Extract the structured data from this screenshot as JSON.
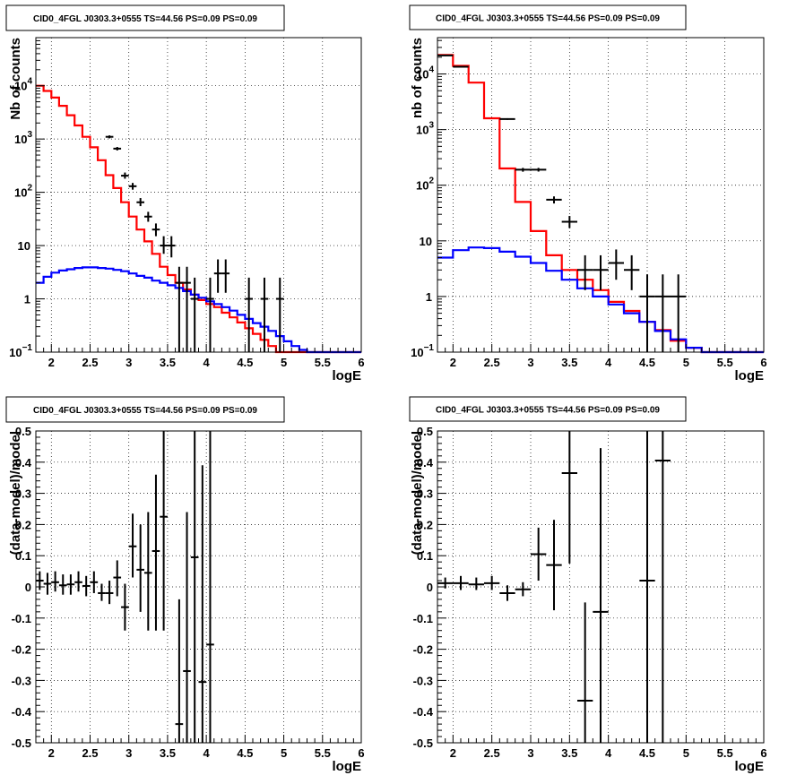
{
  "chart_data": [
    {
      "type": "histogram",
      "title": "CID0_4FGL J0303.3+0555 TS=44.56 PS=0.09 PS=0.09",
      "xlabel": "logE",
      "ylabel": "Nb of counts",
      "log_y": true,
      "xlim": [
        1.8,
        6.0
      ],
      "ylim": [
        0.1,
        80000
      ],
      "grid": true,
      "xticks": [
        "2",
        "2.5",
        "3",
        "3.5",
        "4",
        "4.5",
        "5",
        "5.5",
        "6"
      ],
      "yticks": [
        {
          "v": 0.1,
          "label": "10",
          "sup": "−1"
        },
        {
          "v": 1,
          "label": "1",
          "sup": ""
        },
        {
          "v": 10,
          "label": "10",
          "sup": ""
        },
        {
          "v": 100,
          "label": "10",
          "sup": "2"
        },
        {
          "v": 1000,
          "label": "10",
          "sup": "3"
        },
        {
          "v": 10000,
          "label": "10",
          "sup": "4"
        }
      ],
      "bin_edges_start": 1.8,
      "bin_width": 0.1,
      "series": [
        {
          "color": "#ff0000",
          "values": [
            10000,
            8000,
            6000,
            4200,
            2800,
            1800,
            1100,
            700,
            400,
            210,
            120,
            65,
            35,
            20,
            12,
            7,
            4,
            2.8,
            2.0,
            1.5,
            1.2,
            0.95,
            0.8,
            0.7,
            0.55,
            0.45,
            0.36,
            0.28,
            0.22,
            0.17,
            0.13,
            0.1,
            0.1,
            0.1,
            0.1,
            0.1,
            0.1,
            0.1,
            0.1,
            0.1,
            0.1,
            0.1
          ]
        },
        {
          "color": "#0000ff",
          "values": [
            2.0,
            2.6,
            3.1,
            3.4,
            3.6,
            3.8,
            3.9,
            3.9,
            3.8,
            3.7,
            3.5,
            3.3,
            3.0,
            2.7,
            2.5,
            2.2,
            2.0,
            1.8,
            1.6,
            1.4,
            1.2,
            1.05,
            0.9,
            0.8,
            0.7,
            0.6,
            0.5,
            0.42,
            0.35,
            0.3,
            0.25,
            0.2,
            0.16,
            0.13,
            0.11,
            0.1,
            0.1,
            0.1,
            0.1,
            0.1,
            0.1,
            0.1
          ]
        }
      ],
      "data_points": [
        {
          "x": 2.75,
          "y": 1100,
          "ex": 0.05,
          "lo": 1030,
          "hi": 1170
        },
        {
          "x": 2.85,
          "y": 660,
          "ex": 0.05,
          "lo": 610,
          "hi": 710
        },
        {
          "x": 2.95,
          "y": 205,
          "ex": 0.05,
          "lo": 180,
          "hi": 235
        },
        {
          "x": 3.05,
          "y": 130,
          "ex": 0.05,
          "lo": 112,
          "hi": 150
        },
        {
          "x": 3.15,
          "y": 65,
          "ex": 0.05,
          "lo": 55,
          "hi": 78
        },
        {
          "x": 3.25,
          "y": 35,
          "ex": 0.05,
          "lo": 28,
          "hi": 43
        },
        {
          "x": 3.35,
          "y": 20,
          "ex": 0.05,
          "lo": 15,
          "hi": 26
        },
        {
          "x": 3.45,
          "y": 10,
          "ex": 0.05,
          "lo": 7,
          "hi": 15
        },
        {
          "x": 3.55,
          "y": 10,
          "ex": 0.05,
          "lo": 6,
          "hi": 15
        },
        {
          "x": 3.65,
          "y": 2,
          "ex": 0.05,
          "lo": 0.1,
          "hi": 4
        },
        {
          "x": 3.75,
          "y": 2,
          "ex": 0.05,
          "lo": 0.1,
          "hi": 4
        },
        {
          "x": 3.85,
          "y": 1,
          "ex": 0.05,
          "lo": 0.1,
          "hi": 2.5
        },
        {
          "x": 4.05,
          "y": 1,
          "ex": 0.05,
          "lo": 0.1,
          "hi": 2.5
        },
        {
          "x": 4.15,
          "y": 3,
          "ex": 0.05,
          "lo": 1.3,
          "hi": 5.5
        },
        {
          "x": 4.25,
          "y": 3,
          "ex": 0.05,
          "lo": 1.3,
          "hi": 5.5
        },
        {
          "x": 4.55,
          "y": 1,
          "ex": 0.05,
          "lo": 0.1,
          "hi": 2.5
        },
        {
          "x": 4.75,
          "y": 1,
          "ex": 0.05,
          "lo": 0.1,
          "hi": 2.5
        },
        {
          "x": 4.95,
          "y": 1,
          "ex": 0.05,
          "lo": 0.1,
          "hi": 2.5
        }
      ]
    },
    {
      "type": "histogram",
      "title": "CID0_4FGL J0303.3+0555 TS=44.56 PS=0.09 PS=0.09",
      "xlabel": "logE",
      "ylabel": "nb of counts",
      "log_y": true,
      "xlim": [
        1.8,
        6.0
      ],
      "ylim": [
        0.1,
        45000
      ],
      "grid": true,
      "xticks": [
        "2",
        "2.5",
        "3",
        "3.5",
        "4",
        "4.5",
        "5",
        "5.5",
        "6"
      ],
      "yticks": [
        {
          "v": 0.1,
          "label": "10",
          "sup": "−1"
        },
        {
          "v": 1,
          "label": "1",
          "sup": ""
        },
        {
          "v": 10,
          "label": "10",
          "sup": ""
        },
        {
          "v": 100,
          "label": "10",
          "sup": "2"
        },
        {
          "v": 1000,
          "label": "10",
          "sup": "3"
        },
        {
          "v": 10000,
          "label": "10",
          "sup": "4"
        }
      ],
      "bin_edges_start": 1.8,
      "bin_width": 0.2,
      "series": [
        {
          "color": "#ff0000",
          "values": [
            22000,
            14000,
            7000,
            1600,
            200,
            50,
            15,
            5.5,
            3,
            2,
            1.3,
            0.8,
            0.55,
            0.35,
            0.25,
            0.16,
            0.12,
            0.1,
            0.1,
            0.1,
            0.1
          ]
        },
        {
          "color": "#0000ff",
          "values": [
            5,
            6.8,
            7.6,
            7.4,
            6.4,
            5.2,
            4.0,
            2.9,
            2.0,
            1.4,
            1.0,
            0.72,
            0.5,
            0.35,
            0.24,
            0.17,
            0.12,
            0.1,
            0.1,
            0.1,
            0.1
          ]
        }
      ],
      "data_points": [
        {
          "x": 1.9,
          "y": 21500,
          "ex": 0.1,
          "lo": 21000,
          "hi": 22000
        },
        {
          "x": 2.1,
          "y": 13500,
          "ex": 0.1,
          "lo": 13100,
          "hi": 13900
        },
        {
          "x": 2.7,
          "y": 1550,
          "ex": 0.1,
          "lo": 1500,
          "hi": 1600
        },
        {
          "x": 2.9,
          "y": 190,
          "ex": 0.1,
          "lo": 175,
          "hi": 205
        },
        {
          "x": 3.1,
          "y": 190,
          "ex": 0.1,
          "lo": 176,
          "hi": 205
        },
        {
          "x": 3.3,
          "y": 55,
          "ex": 0.1,
          "lo": 47,
          "hi": 63
        },
        {
          "x": 3.5,
          "y": 22,
          "ex": 0.1,
          "lo": 17,
          "hi": 28
        },
        {
          "x": 3.7,
          "y": 3,
          "ex": 0.1,
          "lo": 1.3,
          "hi": 5.5
        },
        {
          "x": 3.9,
          "y": 3,
          "ex": 0.1,
          "lo": 1.3,
          "hi": 5.5
        },
        {
          "x": 4.1,
          "y": 4,
          "ex": 0.1,
          "lo": 2,
          "hi": 7
        },
        {
          "x": 4.3,
          "y": 3,
          "ex": 0.1,
          "lo": 1.3,
          "hi": 5.5
        },
        {
          "x": 4.5,
          "y": 1,
          "ex": 0.1,
          "lo": 0.1,
          "hi": 2.5
        },
        {
          "x": 4.7,
          "y": 1,
          "ex": 0.1,
          "lo": 0.1,
          "hi": 2.5
        },
        {
          "x": 4.9,
          "y": 1,
          "ex": 0.1,
          "lo": 0.1,
          "hi": 2.5
        }
      ]
    },
    {
      "type": "scatter",
      "title": "CID0_4FGL J0303.3+0555 TS=44.56 PS=0.09 PS=0.09",
      "xlabel": "logE",
      "ylabel": "(data-model)/model",
      "log_y": false,
      "xlim": [
        1.8,
        6.0
      ],
      "ylim": [
        -0.5,
        0.5
      ],
      "grid": true,
      "xticks": [
        "2",
        "2.5",
        "3",
        "3.5",
        "4",
        "4.5",
        "5",
        "5.5",
        "6"
      ],
      "yticks_lin": [
        "-0.5",
        "-0.4",
        "-0.3",
        "-0.2",
        "-0.1",
        "0",
        "0.1",
        "0.2",
        "0.3",
        "0.4",
        "0.5"
      ],
      "data_points": [
        {
          "x": 1.85,
          "y": 0.02,
          "ex": 0.05,
          "lo": -0.01,
          "hi": 0.05
        },
        {
          "x": 1.95,
          "y": 0.01,
          "ex": 0.05,
          "lo": -0.025,
          "hi": 0.045
        },
        {
          "x": 2.05,
          "y": 0.015,
          "ex": 0.05,
          "lo": -0.015,
          "hi": 0.05
        },
        {
          "x": 2.15,
          "y": 0.005,
          "ex": 0.05,
          "lo": -0.025,
          "hi": 0.04
        },
        {
          "x": 2.25,
          "y": 0.008,
          "ex": 0.05,
          "lo": -0.025,
          "hi": 0.04
        },
        {
          "x": 2.35,
          "y": 0.015,
          "ex": 0.05,
          "lo": -0.015,
          "hi": 0.05
        },
        {
          "x": 2.45,
          "y": 0.003,
          "ex": 0.05,
          "lo": -0.03,
          "hi": 0.035
        },
        {
          "x": 2.55,
          "y": 0.015,
          "ex": 0.05,
          "lo": -0.02,
          "hi": 0.05
        },
        {
          "x": 2.65,
          "y": -0.02,
          "ex": 0.05,
          "lo": -0.045,
          "hi": 0.01
        },
        {
          "x": 2.75,
          "y": -0.02,
          "ex": 0.05,
          "lo": -0.055,
          "hi": 0.02
        },
        {
          "x": 2.85,
          "y": 0.03,
          "ex": 0.05,
          "lo": -0.03,
          "hi": 0.085
        },
        {
          "x": 2.95,
          "y": -0.065,
          "ex": 0.05,
          "lo": -0.14,
          "hi": 0.01
        },
        {
          "x": 3.05,
          "y": 0.13,
          "ex": 0.05,
          "lo": 0.03,
          "hi": 0.235
        },
        {
          "x": 3.15,
          "y": 0.055,
          "ex": 0.05,
          "lo": -0.08,
          "hi": 0.2
        },
        {
          "x": 3.25,
          "y": 0.045,
          "ex": 0.05,
          "lo": -0.14,
          "hi": 0.24
        },
        {
          "x": 3.35,
          "y": 0.115,
          "ex": 0.05,
          "lo": -0.14,
          "hi": 0.36
        },
        {
          "x": 3.45,
          "y": 0.225,
          "ex": 0.05,
          "lo": -0.14,
          "hi": 0.5
        },
        {
          "x": 3.65,
          "y": -0.44,
          "ex": 0.05,
          "lo": -0.5,
          "hi": -0.04
        },
        {
          "x": 3.75,
          "y": -0.27,
          "ex": 0.05,
          "lo": -0.5,
          "hi": 0.24
        },
        {
          "x": 3.85,
          "y": 0.095,
          "ex": 0.05,
          "lo": -0.5,
          "hi": 0.5
        },
        {
          "x": 3.95,
          "y": -0.305,
          "ex": 0.05,
          "lo": -0.5,
          "hi": 0.39
        },
        {
          "x": 4.05,
          "y": -0.185,
          "ex": 0.05,
          "lo": -0.5,
          "hi": 0.5
        }
      ]
    },
    {
      "type": "scatter",
      "title": "CID0_4FGL J0303.3+0555 TS=44.56 PS=0.09 PS=0.09",
      "xlabel": "logE",
      "ylabel": "(data-model)/model",
      "log_y": false,
      "xlim": [
        1.8,
        6.0
      ],
      "ylim": [
        -0.5,
        0.5
      ],
      "grid": true,
      "xticks": [
        "2",
        "2.5",
        "3",
        "3.5",
        "4",
        "4.5",
        "5",
        "5.5",
        "6"
      ],
      "yticks_lin": [
        "-0.5",
        "-0.4",
        "-0.3",
        "-0.2",
        "-0.1",
        "0",
        "0.1",
        "0.2",
        "0.3",
        "0.4",
        "0.5"
      ],
      "data_points": [
        {
          "x": 1.9,
          "y": 0.012,
          "ex": 0.1,
          "lo": -0.005,
          "hi": 0.03
        },
        {
          "x": 2.1,
          "y": 0.012,
          "ex": 0.1,
          "lo": -0.01,
          "hi": 0.035
        },
        {
          "x": 2.3,
          "y": 0.008,
          "ex": 0.1,
          "lo": -0.01,
          "hi": 0.03
        },
        {
          "x": 2.5,
          "y": 0.012,
          "ex": 0.1,
          "lo": -0.01,
          "hi": 0.035
        },
        {
          "x": 2.7,
          "y": -0.02,
          "ex": 0.1,
          "lo": -0.045,
          "hi": 0.005
        },
        {
          "x": 2.9,
          "y": -0.008,
          "ex": 0.1,
          "lo": -0.03,
          "hi": 0.015
        },
        {
          "x": 3.1,
          "y": 0.105,
          "ex": 0.1,
          "lo": 0.02,
          "hi": 0.19
        },
        {
          "x": 3.3,
          "y": 0.07,
          "ex": 0.1,
          "lo": -0.075,
          "hi": 0.215
        },
        {
          "x": 3.5,
          "y": 0.365,
          "ex": 0.1,
          "lo": 0.075,
          "hi": 0.5
        },
        {
          "x": 3.7,
          "y": -0.365,
          "ex": 0.1,
          "lo": -0.5,
          "hi": -0.05
        },
        {
          "x": 3.9,
          "y": -0.08,
          "ex": 0.1,
          "lo": -0.5,
          "hi": 0.445
        },
        {
          "x": 4.5,
          "y": 0.02,
          "ex": 0.1,
          "lo": -0.5,
          "hi": 0.5
        },
        {
          "x": 4.7,
          "y": 0.405,
          "ex": 0.1,
          "lo": -0.5,
          "hi": 0.5
        }
      ]
    }
  ]
}
